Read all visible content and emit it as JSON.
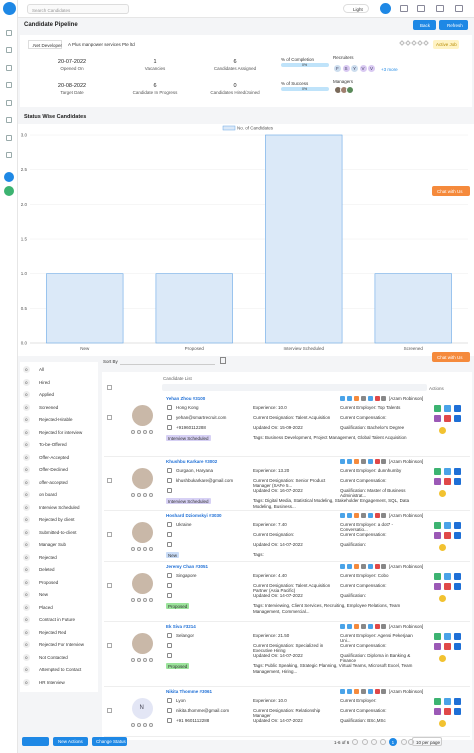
{
  "topbar": {
    "search_placeholder": "Search Candidates",
    "theme": "Light"
  },
  "header": {
    "title": "Candidate Pipeline",
    "back": "Back",
    "refresh": "Refresh"
  },
  "job": {
    "title": ".Net Developer",
    "company": "A Plus manpower services Pte ltd",
    "status": "Active Job",
    "stats": [
      {
        "value": "20-07-2022",
        "label": "Opened On"
      },
      {
        "value": "1",
        "label": "Vacancies"
      },
      {
        "value": "6",
        "label": "Candidates Assigned"
      },
      {
        "value": "20-08-2022",
        "label": "Target Date"
      },
      {
        "value": "6",
        "label": "Candidate In Progress"
      },
      {
        "value": "0",
        "label": "Candidates Hired/Joined"
      }
    ],
    "completion": {
      "label": "% of Completion",
      "value": "0%"
    },
    "success": {
      "label": "% of Success",
      "value": "0%"
    },
    "recruiters": {
      "label": "Recruiters",
      "initials": [
        "F",
        "S",
        "Y",
        "V",
        "V"
      ],
      "more": "+3 more"
    },
    "managers": {
      "label": "Managers"
    }
  },
  "section_title": "Status Wise Candidates",
  "chart_data": {
    "type": "bar",
    "categories": [
      "New",
      "Proposed",
      "Interview Scheduled",
      "Screened"
    ],
    "series": [
      {
        "name": "No. of Candidates",
        "color": "#dbe9f8",
        "values": [
          1,
          1,
          3,
          1
        ]
      }
    ],
    "ylim": [
      0,
      3
    ],
    "yticks": [
      {
        "value": 0,
        "label": "0.0"
      },
      {
        "value": 0.5,
        "label": "0.5"
      },
      {
        "value": 1,
        "label": "1.0"
      },
      {
        "value": 1.5,
        "label": "1.5"
      },
      {
        "value": 2,
        "label": "2.0"
      },
      {
        "value": 2.5,
        "label": "2.5"
      },
      {
        "value": 3,
        "label": "3.0"
      }
    ],
    "grid": true,
    "legend": "top"
  },
  "chat": "Chat with Us",
  "sort_label": "Sort By",
  "statuses": [
    {
      "count": "0",
      "name": "All"
    },
    {
      "count": "0",
      "name": "Hired"
    },
    {
      "count": "0",
      "name": "Applied"
    },
    {
      "count": "0",
      "name": "Screened"
    },
    {
      "count": "0",
      "name": "Rejected-Hirable"
    },
    {
      "count": "0",
      "name": "Rejected for interview"
    },
    {
      "count": "0",
      "name": "To-be-Offered"
    },
    {
      "count": "0",
      "name": "Offer-Accepted"
    },
    {
      "count": "0",
      "name": "Offer-Declined"
    },
    {
      "count": "0",
      "name": "offer-accepted"
    },
    {
      "count": "0",
      "name": "on board"
    },
    {
      "count": "0",
      "name": "Interview Scheduled"
    },
    {
      "count": "0",
      "name": "Rejected by client"
    },
    {
      "count": "0",
      "name": "Submitted-to-client"
    },
    {
      "count": "0",
      "name": "Manager Sub"
    },
    {
      "count": "0",
      "name": "Rejected"
    },
    {
      "count": "0",
      "name": "Deleted"
    },
    {
      "count": "0",
      "name": "Proposed"
    },
    {
      "count": "0",
      "name": "New"
    },
    {
      "count": "0",
      "name": "Placed"
    },
    {
      "count": "0",
      "name": "Contract in Future"
    },
    {
      "count": "0",
      "name": "Rejected Red"
    },
    {
      "count": "0",
      "name": "Rejected For Interview"
    },
    {
      "count": "0",
      "name": "Not Contacted"
    },
    {
      "count": "0",
      "name": "Attempted to Contact"
    },
    {
      "count": "0",
      "name": "HR Interview"
    }
  ],
  "list": {
    "header": "Candidate List",
    "actions_header": "Actions",
    "candidates": [
      {
        "name": "Yehan Zhou #3100",
        "owner": "[Azam Robinson]",
        "location": "Hong Kong",
        "email": "yehan@smartrecruit.com",
        "phone": "+91960112288",
        "status": "Interview Scheduled",
        "status_color": "#d7d1f5",
        "col2": [
          "Experience: 10.0",
          "Current Designation: Talent Acquisition",
          "Updated On: 15-09-2022"
        ],
        "col3": [
          "Current Employer: Top Talents",
          "Current Compensation:",
          "Qualification: Bachelor's Degree"
        ],
        "tags": "Tags: Business Development, Project Management, Global Talent Acquisition"
      },
      {
        "name": "Khushbu Karkare #3002",
        "owner": "[Azam Robinson]",
        "location": "Gurgaon, Haryana",
        "email": "khushbukarkare@gmail.com",
        "status": "Interview Scheduled",
        "status_color": "#d7d1f5",
        "col2": [
          "Experience: 13.20",
          "Current Designation: Senior Product Manager (SAFe 5...",
          "Updated On: 16-07-2022"
        ],
        "col3": [
          "Current Employer: dunnhumby",
          "Current Compensation:",
          "Qualification: Master of Business Administrat..."
        ],
        "tags": "Tags: Digital Media, Statistical Modeling, Stakeholder Engagement, SQL, Data Modeling, Business..."
      },
      {
        "name": "Hoshard Dziomskyi #3030",
        "owner": "[Azam Robinson]",
        "location": "Ukraine",
        "status": "New",
        "status_color": "#c9dcf7",
        "col2": [
          "Experience: 7.40",
          "Current Designation:",
          "Updated On: 14-07-2022"
        ],
        "col3": [
          "Current Employer: a dot7 - Conversatio...",
          "Current Compensation:",
          "Qualification:"
        ],
        "tags": "Tags:"
      },
      {
        "name": "Jeremy Chan #3051",
        "owner": "[Azam Robinson]",
        "location": "Singapore",
        "status": "Proposed",
        "status_color": "#9be39b",
        "col2": [
          "Experience: 4.40",
          "Current Designation: Talent Acquisition Partner (Asia Pacific)",
          "Updated On: 14-07-2022"
        ],
        "col3": [
          "Current Employer: Cobo",
          "Current Compensation:",
          "Qualification:"
        ],
        "tags": "Tags: Interviewing, Client Services, Recruiting, Employee Relations, Team Management, Commercial..."
      },
      {
        "name": "Ek Siva #3214",
        "owner": "[Azam Robinson]",
        "location": "Selangor",
        "status": "Proposed",
        "status_color": "#9be39b",
        "col2": [
          "Experience: 21.50",
          "Current Designation: Specialized in Executive Hiring",
          "Updated On: 14-07-2022"
        ],
        "col3": [
          "Current Employer: Agensi Pekerjaan Uni...",
          "Current Compensation:",
          "Qualification: Diploma in Banking & Finance"
        ],
        "tags": "Tags: Public Speaking, Strategic Planning, Virtual Teams, Microsoft Excel, Team Management, Hiring..."
      },
      {
        "name": "Nikita Thomme #3061",
        "owner": "[Azam Robinson]",
        "avatar_initial": "N",
        "location": "Lyon",
        "email": "nikita.thomme@gmail.com",
        "phone": "+91 9601112288",
        "col2": [
          "Experience: 10.0",
          "Current Designation: Relationship Manager",
          "Updated On: 14-07-2022"
        ],
        "col3": [
          "Current Employer:",
          "Current Compensation:",
          "Qualification: BSc,MSc"
        ]
      }
    ]
  },
  "footer": {
    "new_actions": "New Actions",
    "change_status": "Change Status",
    "range": "1-6 of 6",
    "page": "1",
    "per_page": "10 per page"
  }
}
